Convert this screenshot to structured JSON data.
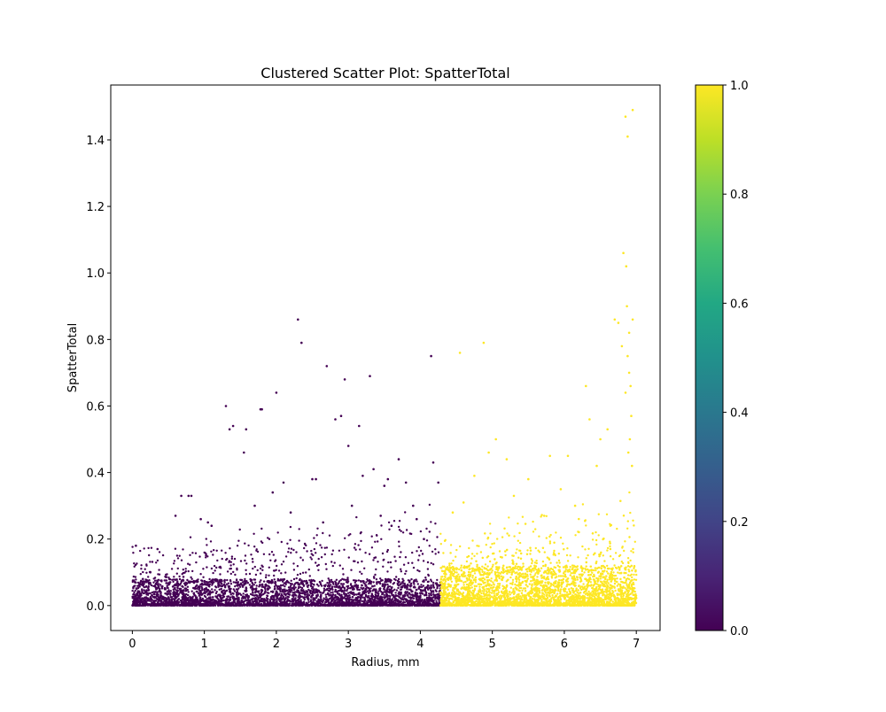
{
  "chart_data": {
    "type": "scatter",
    "title": "Clustered Scatter Plot: SpatterTotal",
    "xlabel": "Radius, mm",
    "ylabel": "SpatterTotal",
    "xlim": [
      -0.3,
      7.33
    ],
    "ylim": [
      -0.075,
      1.565
    ],
    "x_ticks": [
      0,
      1,
      2,
      3,
      4,
      5,
      6,
      7
    ],
    "y_ticks": [
      0.0,
      0.2,
      0.4,
      0.6,
      0.8,
      1.0,
      1.2,
      1.4
    ],
    "x_tick_labels": [
      "0",
      "1",
      "2",
      "3",
      "4",
      "5",
      "6",
      "7"
    ],
    "y_tick_labels": [
      "0.0",
      "0.2",
      "0.4",
      "0.6",
      "0.8",
      "1.0",
      "1.2",
      "1.4"
    ],
    "grid": false,
    "legend": "none",
    "colorbar": {
      "range": [
        0.0,
        1.0
      ],
      "ticks": [
        0.0,
        0.2,
        0.4,
        0.6,
        0.8,
        1.0
      ],
      "tick_labels": [
        "0.0",
        "0.2",
        "0.4",
        "0.6",
        "0.8",
        "1.0"
      ],
      "colormap": "viridis"
    },
    "cluster_boundary_x": 4.28,
    "series": [
      {
        "cluster": 0,
        "color": "#440154",
        "x_range": [
          0.0,
          4.28
        ],
        "dense_band_ymax": 0.08,
        "points": [
          [
            0.05,
            0.18
          ],
          [
            0.15,
            0.06
          ],
          [
            0.25,
            0.1
          ],
          [
            0.35,
            0.17
          ],
          [
            0.6,
            0.27
          ],
          [
            0.68,
            0.33
          ],
          [
            0.78,
            0.33
          ],
          [
            0.82,
            0.33
          ],
          [
            0.95,
            0.26
          ],
          [
            1.05,
            0.25
          ],
          [
            1.1,
            0.24
          ],
          [
            1.3,
            0.6
          ],
          [
            1.35,
            0.53
          ],
          [
            1.4,
            0.54
          ],
          [
            1.55,
            0.46
          ],
          [
            1.58,
            0.53
          ],
          [
            1.78,
            0.59
          ],
          [
            1.8,
            0.59
          ],
          [
            1.95,
            0.34
          ],
          [
            2.0,
            0.64
          ],
          [
            2.1,
            0.37
          ],
          [
            2.3,
            0.86
          ],
          [
            2.35,
            0.79
          ],
          [
            2.5,
            0.38
          ],
          [
            2.55,
            0.38
          ],
          [
            2.7,
            0.72
          ],
          [
            2.82,
            0.56
          ],
          [
            2.9,
            0.57
          ],
          [
            2.95,
            0.68
          ],
          [
            3.0,
            0.48
          ],
          [
            3.15,
            0.54
          ],
          [
            3.2,
            0.39
          ],
          [
            3.3,
            0.69
          ],
          [
            3.35,
            0.41
          ],
          [
            3.5,
            0.36
          ],
          [
            3.55,
            0.38
          ],
          [
            3.7,
            0.44
          ],
          [
            3.8,
            0.37
          ],
          [
            3.9,
            0.3
          ],
          [
            4.15,
            0.75
          ],
          [
            4.18,
            0.43
          ],
          [
            4.25,
            0.37
          ],
          [
            3.6,
            0.24
          ],
          [
            3.95,
            0.26
          ],
          [
            4.05,
            0.2
          ],
          [
            2.65,
            0.25
          ],
          [
            3.05,
            0.3
          ],
          [
            1.7,
            0.3
          ],
          [
            2.2,
            0.28
          ],
          [
            3.45,
            0.27
          ]
        ]
      },
      {
        "cluster": 1,
        "color": "#fde725",
        "x_range": [
          4.28,
          7.0
        ],
        "dense_band_ymax": 0.12,
        "points": [
          [
            4.55,
            0.76
          ],
          [
            4.88,
            0.79
          ],
          [
            5.05,
            0.5
          ],
          [
            4.95,
            0.46
          ],
          [
            5.2,
            0.44
          ],
          [
            4.45,
            0.28
          ],
          [
            4.75,
            0.39
          ],
          [
            5.5,
            0.38
          ],
          [
            5.8,
            0.45
          ],
          [
            6.05,
            0.45
          ],
          [
            6.3,
            0.66
          ],
          [
            6.35,
            0.56
          ],
          [
            6.5,
            0.5
          ],
          [
            6.6,
            0.53
          ],
          [
            6.7,
            0.86
          ],
          [
            6.75,
            0.85
          ],
          [
            6.8,
            0.78
          ],
          [
            6.82,
            1.06
          ],
          [
            6.85,
            1.47
          ],
          [
            6.88,
            1.41
          ],
          [
            6.87,
            0.9
          ],
          [
            6.86,
            1.02
          ],
          [
            6.9,
            0.82
          ],
          [
            6.95,
            1.49
          ],
          [
            6.95,
            0.86
          ],
          [
            6.9,
            0.7
          ],
          [
            6.92,
            0.66
          ],
          [
            6.88,
            0.75
          ],
          [
            6.85,
            0.64
          ],
          [
            6.93,
            0.57
          ],
          [
            6.91,
            0.5
          ],
          [
            6.89,
            0.46
          ],
          [
            6.94,
            0.42
          ],
          [
            5.95,
            0.35
          ],
          [
            6.15,
            0.3
          ],
          [
            5.3,
            0.33
          ],
          [
            4.6,
            0.31
          ],
          [
            6.45,
            0.42
          ]
        ]
      }
    ]
  }
}
